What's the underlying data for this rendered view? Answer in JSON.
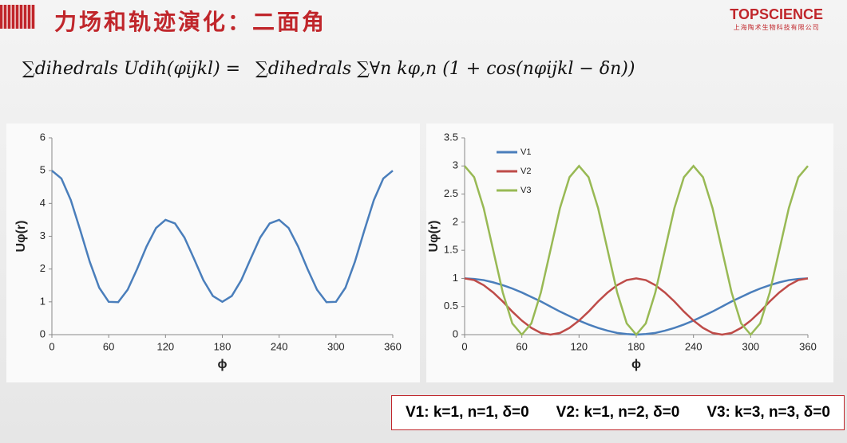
{
  "header": {
    "title": "力场和轨迹演化：二面角",
    "logo": "TOPSCIENCE",
    "logo_subtitle": "上海陶术生物科技有限公司"
  },
  "formula": {
    "left": "∑dihedrals Udih(φijkl) =",
    "right": "∑dihedrals ∑∀n kφ,n (1 + cos(nφijkl − δn))"
  },
  "chart_data": [
    {
      "type": "line",
      "xlabel": "ϕ",
      "ylabel": "Uφ(r)",
      "x": [
        0,
        10,
        20,
        30,
        40,
        50,
        60,
        70,
        80,
        90,
        100,
        110,
        120,
        130,
        140,
        150,
        160,
        170,
        180,
        190,
        200,
        210,
        220,
        230,
        240,
        250,
        260,
        270,
        280,
        290,
        300,
        310,
        320,
        330,
        340,
        350,
        360
      ],
      "series": [
        {
          "name": null,
          "color": "#4a7ebb",
          "values": [
            5,
            4.76,
            4.1,
            3.18,
            2.22,
            1.43,
            1,
            0.99,
            1.37,
            2,
            2.69,
            3.25,
            3.5,
            3.39,
            2.96,
            2.32,
            1.66,
            1.18,
            1,
            1.18,
            1.66,
            2.32,
            2.96,
            3.39,
            3.5,
            3.25,
            2.69,
            2,
            1.37,
            0.99,
            1,
            1.43,
            2.22,
            3.18,
            4.1,
            4.76,
            5
          ]
        }
      ],
      "xlim": [
        0,
        360
      ],
      "xticks": [
        0,
        60,
        120,
        180,
        240,
        300,
        360
      ],
      "ylim": [
        0,
        6
      ],
      "yticks": [
        0,
        1,
        2,
        3,
        4,
        5,
        6
      ],
      "legend": false
    },
    {
      "type": "line",
      "xlabel": "ϕ",
      "ylabel": "Uφ(r)",
      "x": [
        0,
        10,
        20,
        30,
        40,
        50,
        60,
        70,
        80,
        90,
        100,
        110,
        120,
        130,
        140,
        150,
        160,
        170,
        180,
        190,
        200,
        210,
        220,
        230,
        240,
        250,
        260,
        270,
        280,
        290,
        300,
        310,
        320,
        330,
        340,
        350,
        360
      ],
      "series": [
        {
          "name": "V1",
          "color": "#4a7ebb",
          "values": [
            1,
            0.99,
            0.97,
            0.93,
            0.88,
            0.82,
            0.75,
            0.67,
            0.59,
            0.5,
            0.41,
            0.33,
            0.25,
            0.18,
            0.12,
            0.07,
            0.03,
            0.01,
            0,
            0.01,
            0.03,
            0.07,
            0.12,
            0.18,
            0.25,
            0.33,
            0.41,
            0.5,
            0.59,
            0.67,
            0.75,
            0.82,
            0.88,
            0.93,
            0.97,
            0.99,
            1
          ]
        },
        {
          "name": "V2",
          "color": "#be4b48",
          "values": [
            1,
            0.97,
            0.88,
            0.75,
            0.59,
            0.41,
            0.25,
            0.12,
            0.03,
            0,
            0.03,
            0.12,
            0.25,
            0.41,
            0.59,
            0.75,
            0.88,
            0.97,
            1,
            0.97,
            0.88,
            0.75,
            0.59,
            0.41,
            0.25,
            0.12,
            0.03,
            0,
            0.03,
            0.12,
            0.25,
            0.41,
            0.59,
            0.75,
            0.88,
            0.97,
            1
          ]
        },
        {
          "name": "V3",
          "color": "#98b954",
          "values": [
            3,
            2.8,
            2.25,
            1.5,
            0.75,
            0.2,
            0,
            0.2,
            0.75,
            1.5,
            2.25,
            2.8,
            3,
            2.8,
            2.25,
            1.5,
            0.75,
            0.2,
            0,
            0.2,
            0.75,
            1.5,
            2.25,
            2.8,
            3,
            2.8,
            2.25,
            1.5,
            0.75,
            0.2,
            0,
            0.2,
            0.75,
            1.5,
            2.25,
            2.8,
            3
          ]
        }
      ],
      "xlim": [
        0,
        360
      ],
      "xticks": [
        0,
        60,
        120,
        180,
        240,
        300,
        360
      ],
      "ylim": [
        0,
        3.5
      ],
      "yticks": [
        0,
        0.5,
        1,
        1.5,
        2,
        2.5,
        3,
        3.5
      ],
      "legend": "upper left"
    }
  ],
  "footer": {
    "params": [
      "V1: k=1, n=1, δ=0",
      "V2: k=1, n=2, δ=0",
      "V3: k=3, n=3, δ=0"
    ]
  }
}
